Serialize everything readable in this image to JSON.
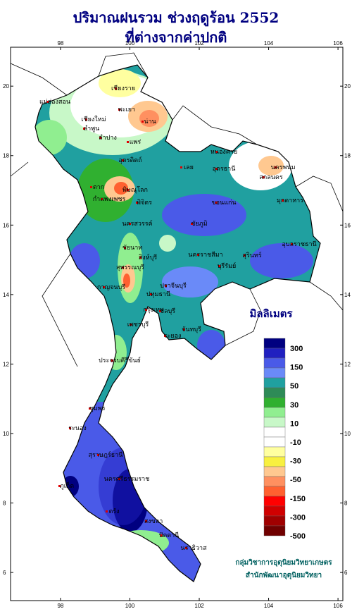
{
  "title": [
    "ปริมาณฝนรวม ช่วงฤดูร้อน 2552",
    "ที่ต่างจากค่าปกติ"
  ],
  "map": {
    "xlim": [
      96.56,
      106.14
    ],
    "ylim": [
      5.19,
      21.12
    ],
    "xticks": [
      98,
      100,
      102,
      104,
      106
    ],
    "yticks": [
      6,
      8,
      10,
      12,
      14,
      16,
      18,
      20
    ]
  },
  "legend": {
    "title": "มิลลิเมตร",
    "colors": [
      "#000080",
      "#2020c0",
      "#4a5ae8",
      "#6a8af8",
      "#20a0a0",
      "#2e8b57",
      "#30b030",
      "#90ee90",
      "#c8f8c8",
      "#ffffff",
      "#ffffff",
      "#ffffa0",
      "#f8f040",
      "#ffc890",
      "#ff9060",
      "#ff6030",
      "#ff0000",
      "#d00000",
      "#a00000",
      "#700000"
    ],
    "labels": [
      "300",
      "150",
      "50",
      "30",
      "10",
      "-10",
      "-30",
      "-50",
      "-150",
      "-300",
      "-500"
    ]
  },
  "credits": [
    "กลุ่มวิชาการอุตุนิยมวิทยาเกษตร",
    "สำนักพัฒนาอุตุนิยมวิทยา"
  ],
  "places": [
    "เชียงราย",
    "แม่ฮ่องสอน",
    "เชียงใหม่",
    "พะเยา",
    "ลำพูน",
    "น่าน",
    "ลำปาง",
    "แพร่",
    "อุตรดิตถ์",
    "ตาก",
    "พิษณุโลก",
    "กำแพงเพชร",
    "พิจิตร",
    "นครสวรรค์",
    "ชัยนาท",
    "สิงห์บุรี",
    "สุพรรณบุรี",
    "กาญจนบุรี",
    "ปทุมธานี",
    "กรุงเทพ",
    "เพชรบุรี",
    "ประจวบคีรีขันธ์",
    "ชุมพร",
    "ระนอง",
    "สุราษฎร์ธานี",
    "ภูเก็ต",
    "นครศรีธรรมราช",
    "ตรัง",
    "สงขลา",
    "ปัตตานี",
    "นราธิวาส",
    "หนองคาย",
    "อุดรธานี",
    "เลย",
    "สกลนคร",
    "นครพนม",
    "มุกดาหาร",
    "ขอนแก่น",
    "ชัยภูมิ",
    "อุบลราชธานี",
    "สุรินทร์",
    "นครราชสีมา",
    "บุรีรัมย์",
    "ปราจีนบุรี",
    "ชลบุรี",
    "ระยอง",
    "จันทบุรี"
  ]
}
